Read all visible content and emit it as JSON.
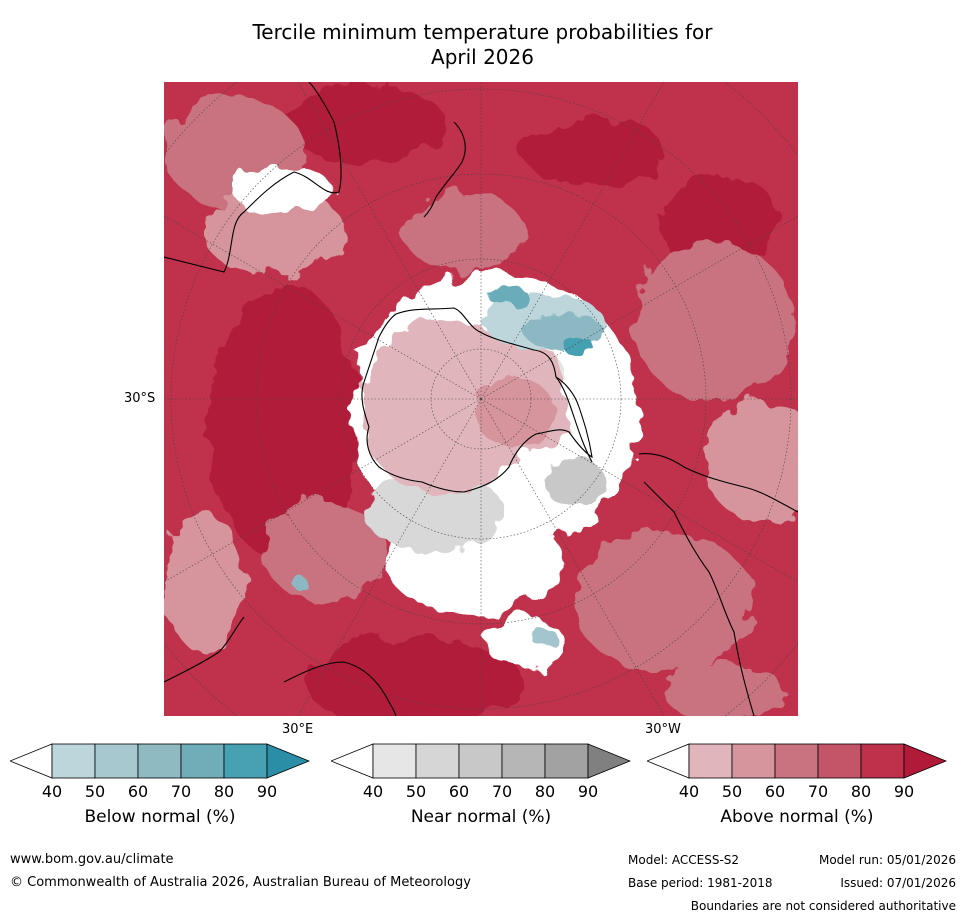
{
  "title_line1": "Tercile minimum temperature probabilities for",
  "title_line2": "April 2026",
  "map": {
    "lat_label": "30°S",
    "lon_labels": [
      "30°E",
      "30°W"
    ],
    "colors": {
      "above": [
        "#e0b6bc",
        "#d6949d",
        "#c97380",
        "#c45569",
        "#c0314b",
        "#b21a3a"
      ],
      "near": [
        "#e6e6e6",
        "#d8d8d8",
        "#c8c8c8",
        "#b4b4b4",
        "#a0a0a0",
        "#808080"
      ],
      "below": [
        "#bdd6dc",
        "#a3c6ce",
        "#8bb8c2",
        "#6aacb9",
        "#45a0b2",
        "#2a8fa6"
      ]
    }
  },
  "colorbars": [
    {
      "label": "Below normal (%)",
      "ticks": [
        "40",
        "50",
        "60",
        "70",
        "80",
        "90"
      ],
      "colors": [
        "#ffffff",
        "#bdd6dc",
        "#a7c8ce",
        "#8fbac2",
        "#6fadb8",
        "#47a1b2",
        "#2a8fa6"
      ]
    },
    {
      "label": "Near normal (%)",
      "ticks": [
        "40",
        "50",
        "60",
        "70",
        "80",
        "90"
      ],
      "colors": [
        "#ffffff",
        "#e6e6e6",
        "#d6d6d6",
        "#c8c8c8",
        "#b6b6b6",
        "#a2a2a2",
        "#808080"
      ]
    },
    {
      "label": "Above normal (%)",
      "ticks": [
        "40",
        "50",
        "60",
        "70",
        "80",
        "90"
      ],
      "colors": [
        "#ffffff",
        "#e0b6bc",
        "#d6949d",
        "#c97380",
        "#c45569",
        "#bf314b",
        "#b21a3a"
      ]
    }
  ],
  "footer": {
    "url": "www.bom.gov.au/climate",
    "copyright": "© Commonwealth of Australia 2026, Australian Bureau of Meteorology",
    "model": "Model: ACCESS-S2",
    "model_run": "Model run: 05/01/2026",
    "base_period": "Base period: 1981-2018",
    "issued": "Issued: 07/01/2026",
    "boundaries": "Boundaries are not considered authoritative"
  }
}
